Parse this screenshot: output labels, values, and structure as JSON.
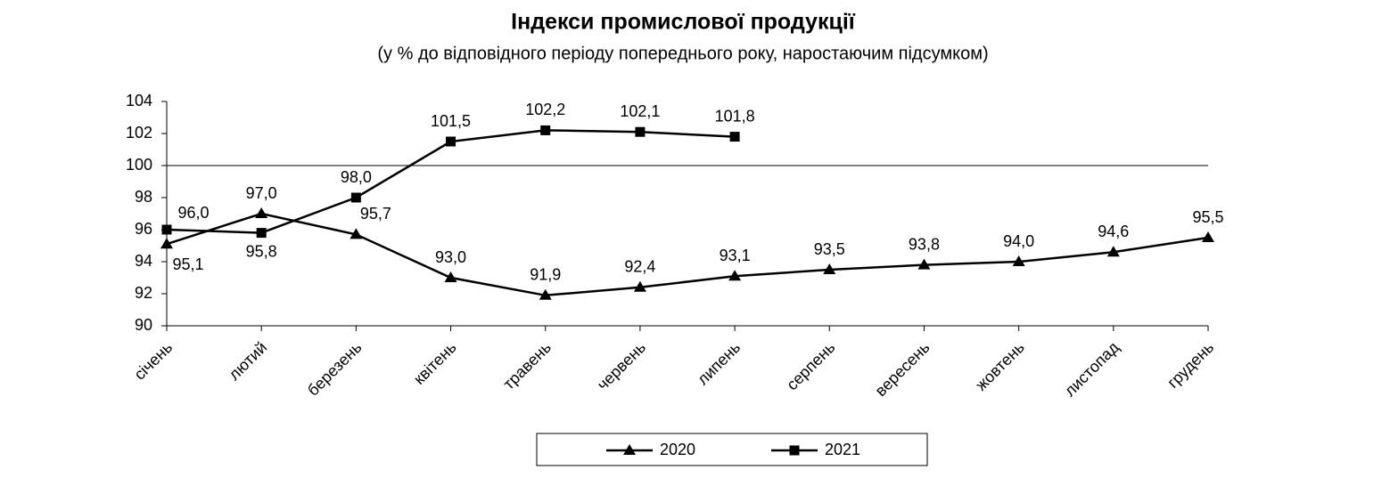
{
  "chart_data": {
    "type": "line",
    "title": "Індекси промислової продукції",
    "subtitle": "(у % до відповідного періоду попереднього року, наростаючим підсумком)",
    "categories": [
      "січень",
      "лютий",
      "березень",
      "квітень",
      "травень",
      "червень",
      "липень",
      "серпень",
      "вересень",
      "жовтень",
      "листопад",
      "грудень"
    ],
    "series": [
      {
        "name": "2020",
        "color": "#000000",
        "marker": "triangle",
        "values": [
          95.1,
          97.0,
          95.7,
          93.0,
          91.9,
          92.4,
          93.1,
          93.5,
          93.8,
          94.0,
          94.6,
          95.5
        ],
        "value_labels": [
          "95,1",
          "97,0",
          "95,7",
          "93,0",
          "91,9",
          "92,4",
          "93,1",
          "93,5",
          "93,8",
          "94,0",
          "94,6",
          "95,5"
        ]
      },
      {
        "name": "2021",
        "color": "#000000",
        "marker": "square",
        "values": [
          96.0,
          95.8,
          98.0,
          101.5,
          102.2,
          102.1,
          101.8,
          null,
          null,
          null,
          null,
          null
        ],
        "value_labels": [
          "96,0",
          "95,8",
          "98,0",
          "101,5",
          "102,2",
          "102,1",
          "101,8",
          null,
          null,
          null,
          null,
          null
        ]
      }
    ],
    "ylim": [
      90,
      104
    ],
    "yticks": [
      90,
      92,
      94,
      96,
      98,
      100,
      102,
      104
    ],
    "hline": 100,
    "legend": "bottom",
    "grid": false
  }
}
